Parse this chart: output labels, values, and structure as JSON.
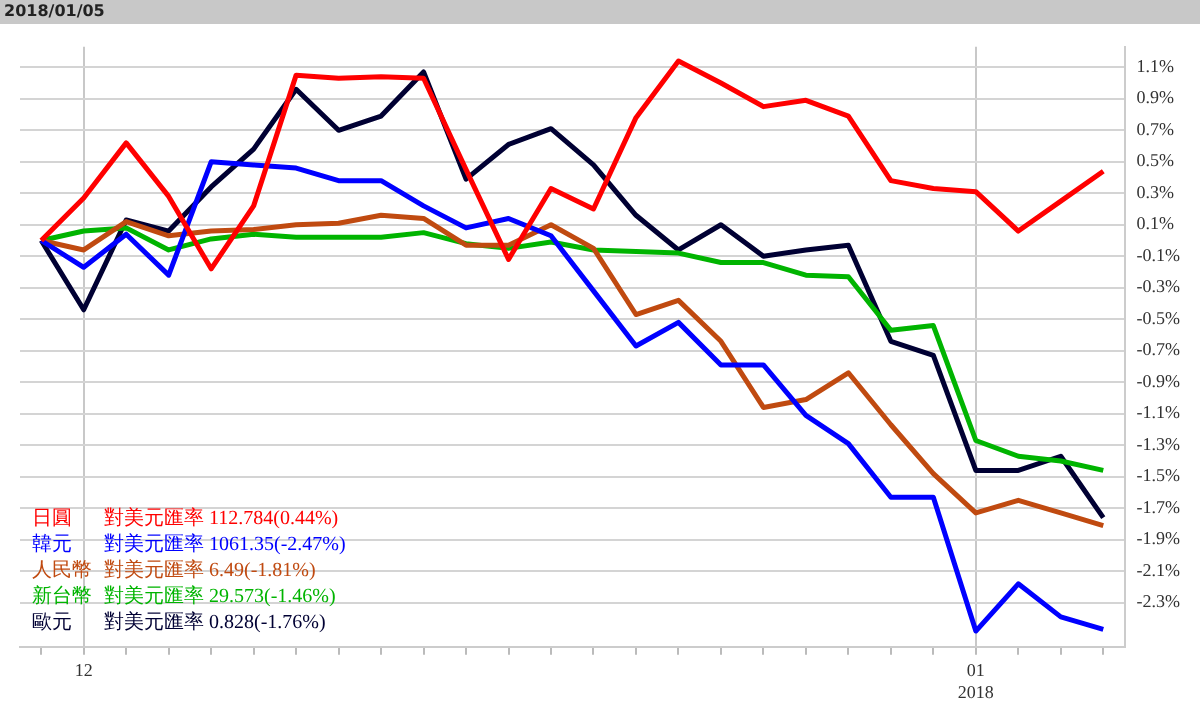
{
  "chart_data": {
    "type": "line",
    "title": "2018/01/05",
    "categories": [
      null,
      "12",
      null,
      null,
      null,
      null,
      null,
      null,
      null,
      null,
      null,
      null,
      null,
      null,
      null,
      null,
      null,
      null,
      null,
      null,
      null,
      null,
      "01\n2018",
      null,
      null,
      null
    ],
    "series": [
      {
        "name": "日圓",
        "color": "#ff0000",
        "values": [
          0,
          0.27,
          0.62,
          0.28,
          -0.18,
          0.22,
          1.05,
          1.03,
          1.04,
          1.03,
          0.45,
          -0.12,
          0.33,
          0.2,
          0.78,
          1.14,
          1.0,
          0.85,
          0.89,
          0.79,
          0.38,
          0.33,
          0.31,
          0.06,
          0.25,
          0.44
        ]
      },
      {
        "name": "韓元",
        "color": "#0000ff",
        "values": [
          0,
          -0.17,
          0.04,
          -0.22,
          0.5,
          0.48,
          0.46,
          0.38,
          0.38,
          0.22,
          0.08,
          0.14,
          0.03,
          -0.32,
          -0.67,
          -0.52,
          -0.79,
          -0.79,
          -1.11,
          -1.29,
          -1.63,
          -1.63,
          -2.48,
          -2.18,
          -2.39,
          -2.47
        ]
      },
      {
        "name": "人民幣",
        "color": "#c04a10",
        "values": [
          0,
          -0.06,
          0.12,
          0.03,
          0.06,
          0.07,
          0.1,
          0.11,
          0.16,
          0.14,
          -0.03,
          -0.03,
          0.1,
          -0.05,
          -0.47,
          -0.38,
          -0.64,
          -1.06,
          -1.01,
          -0.84,
          -1.17,
          -1.48,
          -1.73,
          -1.65,
          -1.73,
          -1.81
        ]
      },
      {
        "name": "新台幣",
        "color": "#00b400",
        "values": [
          0,
          0.06,
          0.08,
          -0.06,
          0.01,
          0.04,
          0.02,
          0.02,
          0.02,
          0.05,
          -0.02,
          -0.05,
          -0.01,
          -0.06,
          -0.07,
          -0.08,
          -0.14,
          -0.14,
          -0.22,
          -0.23,
          -0.57,
          -0.54,
          -1.27,
          -1.37,
          -1.4,
          -1.46
        ]
      },
      {
        "name": "歐元",
        "color": "#000033",
        "values": [
          0,
          -0.44,
          0.13,
          0.06,
          0.34,
          0.58,
          0.96,
          0.7,
          0.79,
          1.07,
          0.39,
          0.61,
          0.71,
          0.48,
          0.16,
          -0.06,
          0.1,
          -0.1,
          -0.06,
          -0.03,
          -0.64,
          -0.73,
          -1.46,
          -1.46,
          -1.37,
          -1.76
        ]
      }
    ],
    "annotations": [
      "對美元匯率 112.784(0.44%)",
      "對美元匯率 1061.35(-2.47%)",
      "對美元匯率 6.49(-1.81%)",
      "對美元匯率 29.573(-1.46%)",
      "對美元匯率 0.828(-1.76%)"
    ],
    "ylim": [
      -2.58,
      1.23
    ],
    "yticks": [
      {
        "value": 1.1,
        "label": "1.1%"
      },
      {
        "value": 0.9,
        "label": "0.9%"
      },
      {
        "value": 0.7,
        "label": "0.7%"
      },
      {
        "value": 0.5,
        "label": "0.5%"
      },
      {
        "value": 0.3,
        "label": "0.3%"
      },
      {
        "value": 0.1,
        "label": "0.1%"
      },
      {
        "value": -0.1,
        "label": "-0.1%"
      },
      {
        "value": -0.3,
        "label": "-0.3%"
      },
      {
        "value": -0.5,
        "label": "-0.5%"
      },
      {
        "value": -0.7,
        "label": "-0.7%"
      },
      {
        "value": -0.9,
        "label": "-0.9%"
      },
      {
        "value": -1.1,
        "label": "-1.1%"
      },
      {
        "value": -1.3,
        "label": "-1.3%"
      },
      {
        "value": -1.5,
        "label": "-1.5%"
      },
      {
        "value": -1.7,
        "label": "-1.7%"
      },
      {
        "value": -1.9,
        "label": "-1.9%"
      },
      {
        "value": -2.1,
        "label": "-2.1%"
      },
      {
        "value": -2.3,
        "label": "-2.3%"
      }
    ],
    "grid": true,
    "legend": "bottom left",
    "marker": "none",
    "line_style": "solid"
  }
}
